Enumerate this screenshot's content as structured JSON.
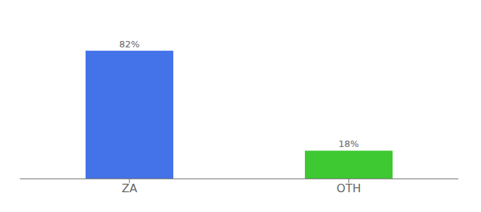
{
  "chart_data": {
    "type": "bar",
    "categories": [
      "ZA",
      "OTH"
    ],
    "values": [
      82,
      18
    ],
    "value_labels": [
      "82%",
      "18%"
    ],
    "colors": [
      "#4472e8",
      "#3ec832"
    ],
    "ylim": [
      0,
      100
    ],
    "grid": false,
    "data_labels": true,
    "tick_labels": "x"
  }
}
